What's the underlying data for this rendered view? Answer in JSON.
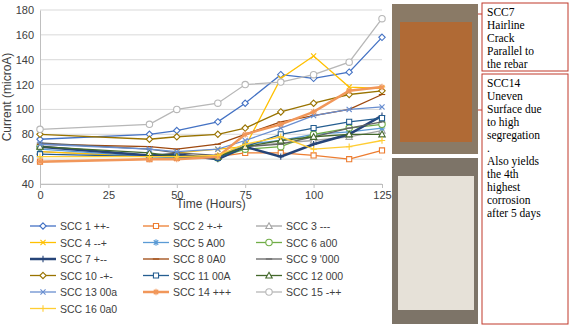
{
  "chart_data": {
    "type": "line",
    "x_label": "Time (Hours)",
    "y_label": "Current (microA)",
    "x": [
      0,
      40,
      50,
      65,
      75,
      88,
      100,
      113,
      125
    ],
    "xlim": [
      0,
      125
    ],
    "xticks": [
      0,
      25,
      50,
      75,
      100,
      125
    ],
    "ylim": [
      40,
      180
    ],
    "yticks": [
      40,
      60,
      80,
      100,
      120,
      140,
      160,
      180
    ],
    "grid": true,
    "legend": "bottom",
    "series": [
      {
        "name": "SCC 1 ++-",
        "color": "#4472c4",
        "marker": "diamond",
        "values": [
          76,
          80,
          83,
          90,
          105,
          128,
          125,
          130,
          158
        ]
      },
      {
        "name": "SCC 2 +-+",
        "color": "#ed7d31",
        "marker": "square",
        "values": [
          58,
          60,
          61,
          62,
          65,
          65,
          63,
          60,
          67
        ]
      },
      {
        "name": "SCC 3 ---",
        "color": "#a5a5a5",
        "marker": "triangle",
        "values": [
          66,
          62,
          63,
          62,
          70,
          73,
          75,
          78,
          83
        ]
      },
      {
        "name": "SCC 4 --+",
        "color": "#ffc000",
        "marker": "x",
        "values": [
          66,
          62,
          65,
          68,
          70,
          125,
          143,
          118,
          117
        ]
      },
      {
        "name": "SCC 5 A00",
        "color": "#5b9bd5",
        "marker": "star",
        "values": [
          68,
          62,
          61,
          62,
          72,
          75,
          80,
          82,
          85
        ]
      },
      {
        "name": "SCC 6 a00",
        "color": "#70ad47",
        "marker": "circle",
        "values": [
          70,
          63,
          62,
          61,
          68,
          70,
          80,
          85,
          88
        ]
      },
      {
        "name": "SCC 7 +--",
        "color": "#264478",
        "marker": "plus",
        "values": [
          70,
          63,
          64,
          60,
          70,
          62,
          72,
          80,
          95
        ]
      },
      {
        "name": "SCC 8 0A0",
        "color": "#9e480e",
        "marker": "dash",
        "values": [
          72,
          70,
          68,
          72,
          80,
          90,
          95,
          100,
          112
        ]
      },
      {
        "name": "SCC 9 '000",
        "color": "#636363",
        "marker": "dash",
        "values": [
          73,
          68,
          65,
          63,
          70,
          72,
          78,
          85,
          90
        ]
      },
      {
        "name": "SCC 10 -+-",
        "color": "#997300",
        "marker": "diamond",
        "values": [
          80,
          76,
          78,
          80,
          85,
          98,
          105,
          112,
          115
        ]
      },
      {
        "name": "SCC 11 00A",
        "color": "#255e91",
        "marker": "square",
        "values": [
          64,
          62,
          62,
          61,
          70,
          80,
          85,
          90,
          93
        ]
      },
      {
        "name": "SCC 12 000",
        "color": "#43682b",
        "marker": "triangle",
        "values": [
          70,
          65,
          62,
          62,
          70,
          75,
          78,
          80,
          80
        ]
      },
      {
        "name": "SCC 13 00a",
        "color": "#698ed0",
        "marker": "x",
        "values": [
          72,
          68,
          66,
          68,
          75,
          85,
          95,
          100,
          102
        ]
      },
      {
        "name": "SCC 14 +++",
        "color": "#f1975a",
        "marker": "star",
        "values": [
          58,
          60,
          60,
          62,
          80,
          88,
          98,
          115,
          118
        ]
      },
      {
        "name": "SCC 15 -++",
        "color": "#b7b7b7",
        "marker": "circle",
        "values": [
          84,
          88,
          100,
          105,
          120,
          122,
          128,
          138,
          173
        ]
      },
      {
        "name": "SCC 16 0a0",
        "color": "#ffcd33",
        "marker": "plus",
        "values": [
          62,
          62,
          62,
          63,
          72,
          78,
          68,
          70,
          75
        ]
      }
    ],
    "annotations": [
      {
        "lines": [
          "SCC7",
          "Hairline",
          "Crack",
          "Parallel to",
          "the rebar"
        ]
      },
      {
        "lines": [
          "SCC14",
          "Uneven",
          "Surface due",
          "to high",
          "segregation",
          ".",
          "Also yields",
          "the 4th",
          "highest",
          "corrosion",
          "after 5 days"
        ]
      }
    ]
  }
}
